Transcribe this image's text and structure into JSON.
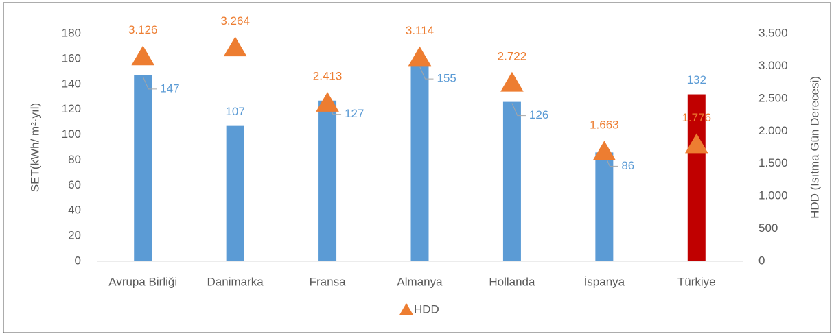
{
  "chart_data": {
    "type": "bar",
    "categories": [
      "Avrupa Birliği",
      "Danimarka",
      "Fransa",
      "Almanya",
      "Hollanda",
      "İspanya",
      "Türkiye"
    ],
    "ylabel": "SET(kWh/ m²·yıl)",
    "y2label": "HDD (Isıtma Gün Derecesi)",
    "ylim": [
      0,
      180
    ],
    "yticks": [
      0,
      20,
      40,
      60,
      80,
      100,
      120,
      140,
      160,
      180
    ],
    "y2lim": [
      0,
      3500
    ],
    "y2ticks": [
      0,
      500,
      {
        "value": 1000,
        "label": "1.000"
      },
      {
        "value": 1500,
        "label": "1.500"
      },
      {
        "value": 2000,
        "label": "2.000"
      },
      {
        "value": 2500,
        "label": "2.500"
      },
      {
        "value": 3000,
        "label": "3.000"
      },
      {
        "value": 3500,
        "label": "3.500"
      }
    ],
    "series": [
      {
        "type": "bar",
        "color": "#5b9bd5",
        "colors": [
          "#5b9bd5",
          "#5b9bd5",
          "#5b9bd5",
          "#5b9bd5",
          "#5b9bd5",
          "#5b9bd5",
          "#c00000"
        ],
        "values": [
          147,
          107,
          127,
          155,
          126,
          86,
          132
        ]
      },
      {
        "type": "scatter",
        "name": "HDD",
        "axis": "y2",
        "marker": "triangle",
        "color": "#ed7d31",
        "values": [
          3126,
          3264,
          2413,
          3114,
          2722,
          1663,
          1776
        ],
        "value_labels": [
          "3.126",
          "3.264",
          "2.413",
          "3.114",
          "2.722",
          "1.663",
          "1.776"
        ]
      }
    ],
    "legend": "bottom"
  }
}
